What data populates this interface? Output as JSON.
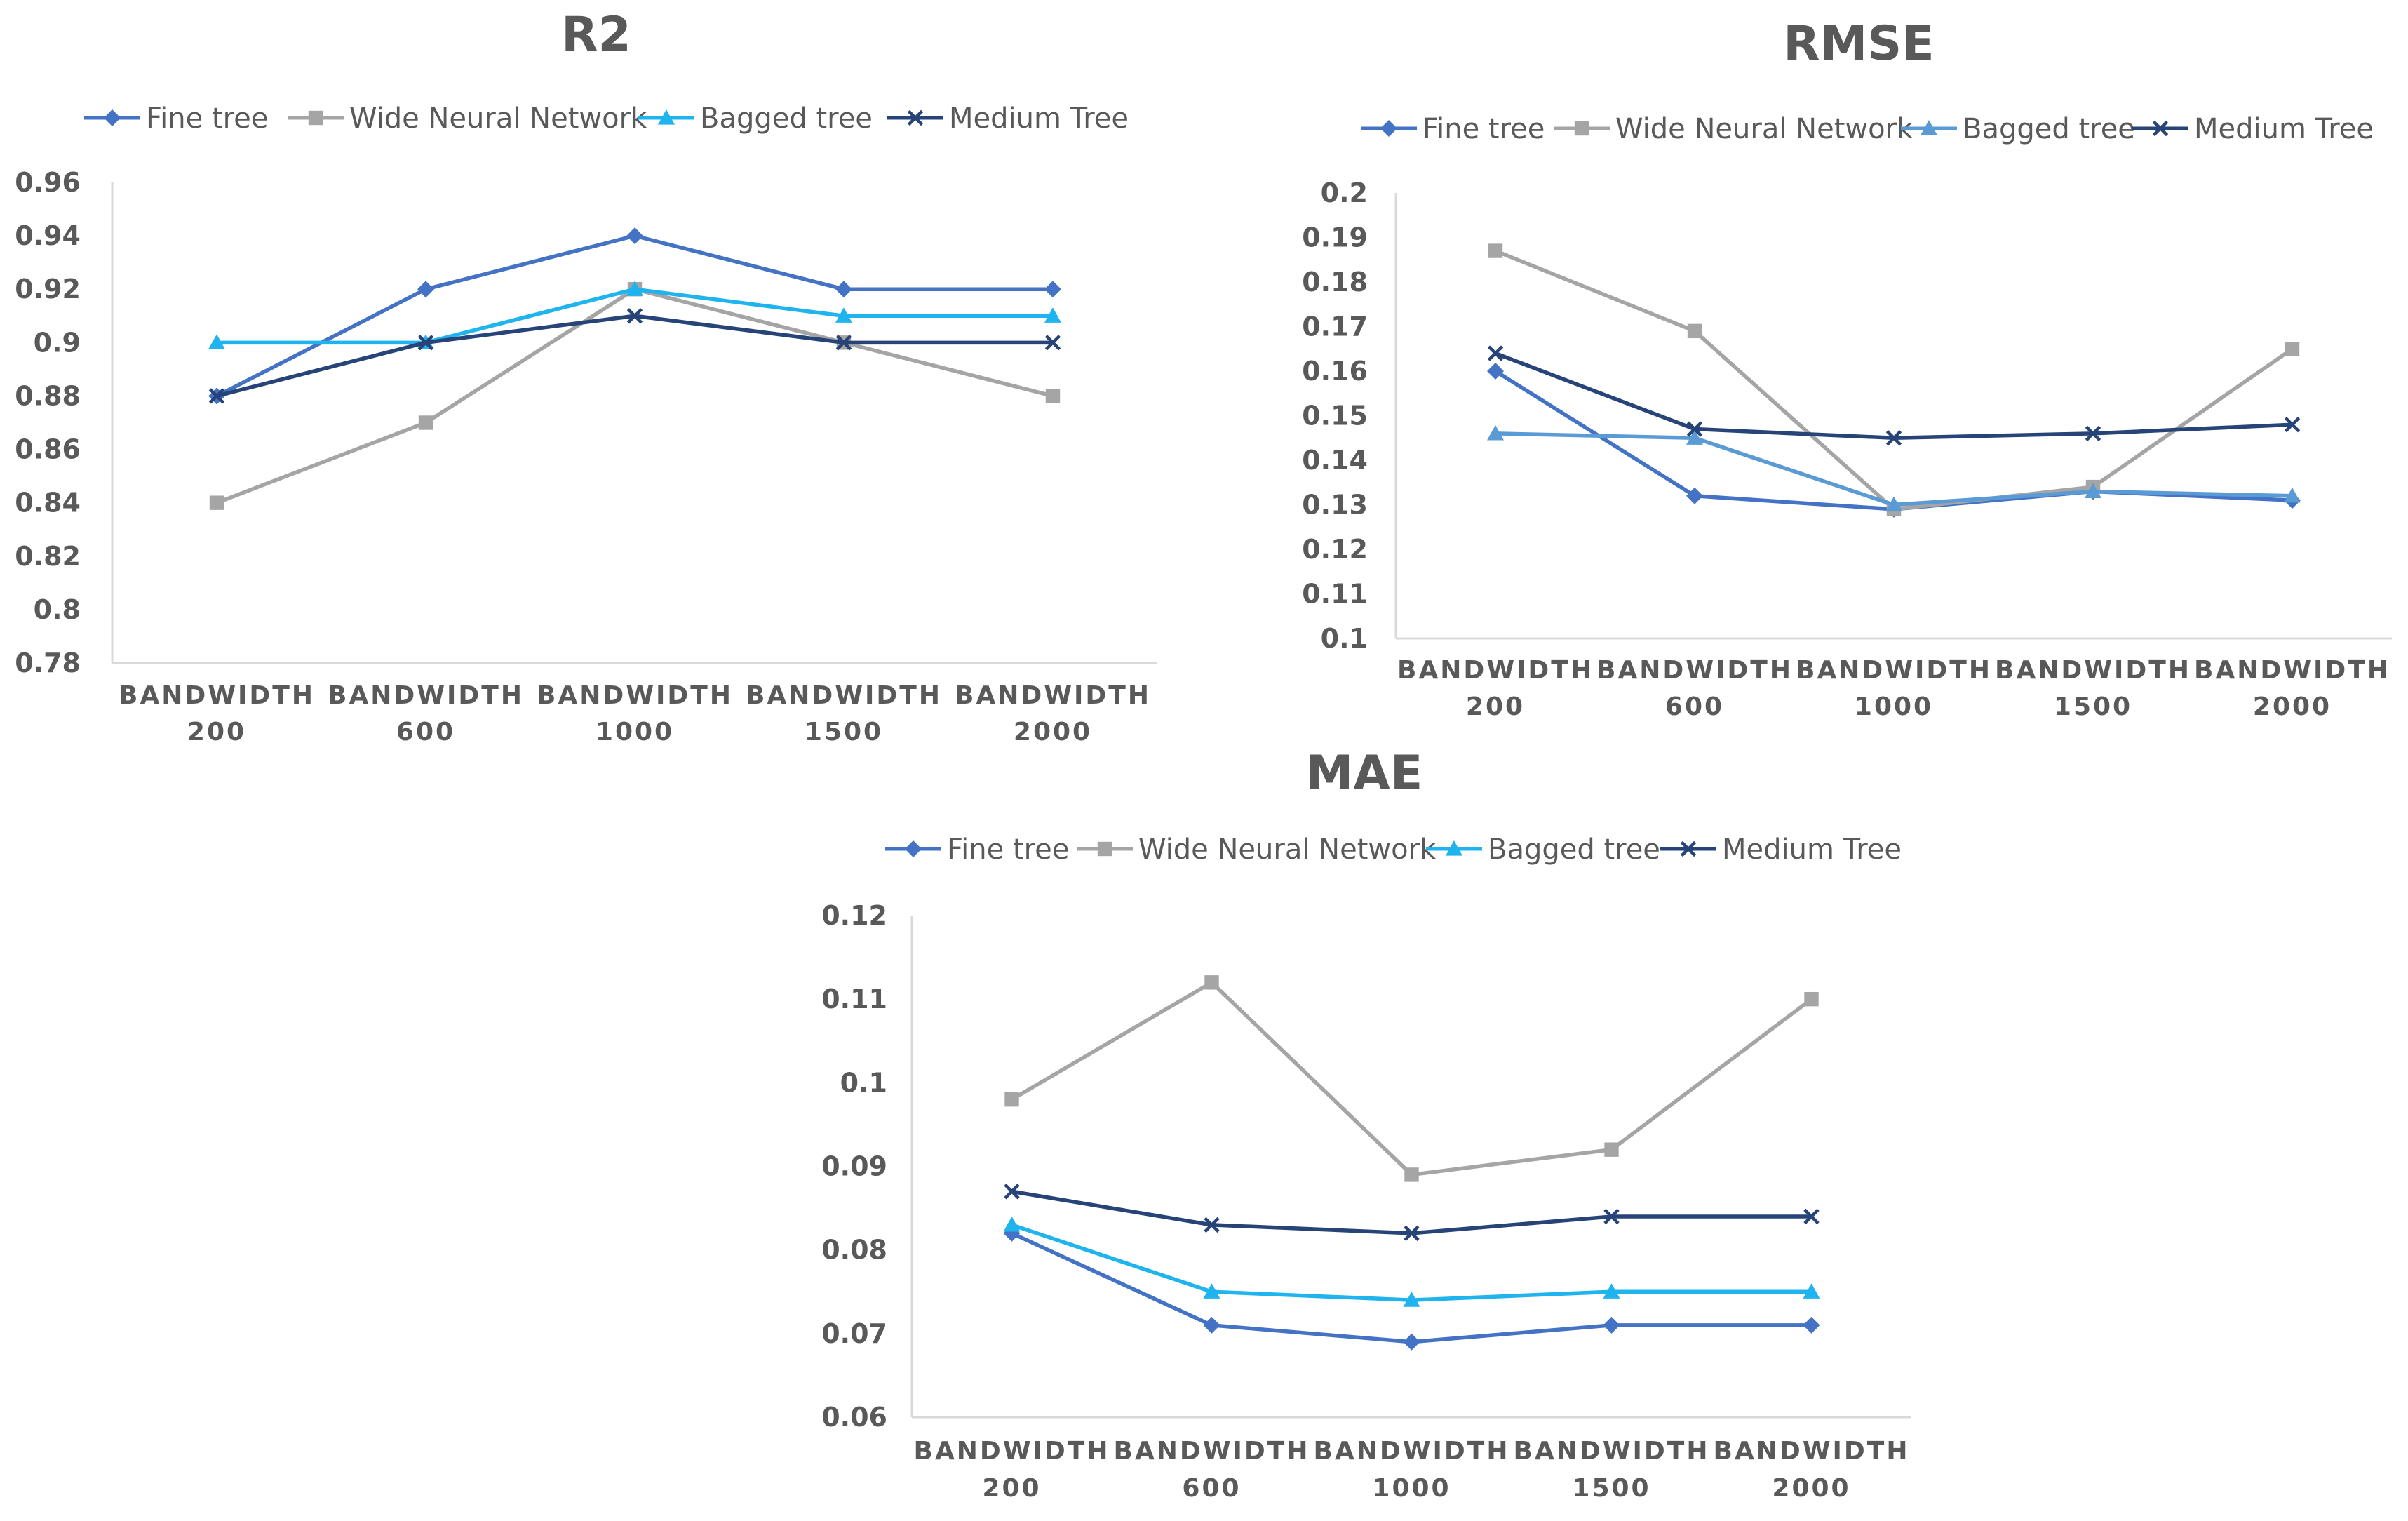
{
  "figure": {
    "colors": {
      "fine_tree": "#4472C4",
      "wide_neural_network": "#A5A5A5",
      "bagged_tree": "#1FB4EE",
      "bagged_tree_alt": "#5B9BD5",
      "medium_tree": "#264478",
      "axis": "#D9D9D9",
      "text": "#595959"
    }
  },
  "chart_data": [
    {
      "id": "r2",
      "type": "line",
      "title": "R2",
      "legend_position": "top",
      "categories": [
        [
          "BANDWIDTH",
          "200"
        ],
        [
          "BANDWIDTH",
          "600"
        ],
        [
          "BANDWIDTH",
          "1000"
        ],
        [
          "BANDWIDTH",
          "1500"
        ],
        [
          "BANDWIDTH",
          "2000"
        ]
      ],
      "ylim": [
        0.78,
        0.96
      ],
      "yticks": [
        "0.78",
        "0.8",
        "0.82",
        "0.84",
        "0.86",
        "0.88",
        "0.9",
        "0.92",
        "0.94",
        "0.96"
      ],
      "grid": false,
      "series": [
        {
          "name": "Fine tree",
          "marker": "diamond",
          "color": "#4472C4",
          "values": [
            0.88,
            0.92,
            0.94,
            0.92,
            0.92
          ]
        },
        {
          "name": "Wide Neural Network",
          "marker": "square",
          "color": "#A5A5A5",
          "values": [
            0.84,
            0.87,
            0.92,
            0.9,
            0.88
          ]
        },
        {
          "name": "Bagged tree",
          "marker": "triangle",
          "color": "#1FB4EE",
          "values": [
            0.9,
            0.9,
            0.92,
            0.91,
            0.91
          ]
        },
        {
          "name": "Medium Tree",
          "marker": "x",
          "color": "#264478",
          "values": [
            0.88,
            0.9,
            0.91,
            0.9,
            0.9
          ]
        }
      ]
    },
    {
      "id": "rmse",
      "type": "line",
      "title": "RMSE",
      "legend_position": "top",
      "categories": [
        [
          "BANDWIDTH",
          "200"
        ],
        [
          "BANDWIDTH",
          "600"
        ],
        [
          "BANDWIDTH",
          "1000"
        ],
        [
          "BANDWIDTH",
          "1500"
        ],
        [
          "BANDWIDTH",
          "2000"
        ]
      ],
      "ylim": [
        0.1,
        0.2
      ],
      "yticks": [
        "0.1",
        "0.11",
        "0.12",
        "0.13",
        "0.14",
        "0.15",
        "0.16",
        "0.17",
        "0.18",
        "0.19",
        "0.2"
      ],
      "grid": false,
      "series": [
        {
          "name": "Fine tree",
          "marker": "diamond",
          "color": "#4472C4",
          "values": [
            0.16,
            0.132,
            0.129,
            0.133,
            0.131
          ]
        },
        {
          "name": "Wide Neural Network",
          "marker": "square",
          "color": "#A5A5A5",
          "values": [
            0.187,
            0.169,
            0.129,
            0.134,
            0.165
          ]
        },
        {
          "name": "Bagged tree",
          "marker": "triangle",
          "color": "#5B9BD5",
          "values": [
            0.146,
            0.145,
            0.13,
            0.133,
            0.132
          ]
        },
        {
          "name": "Medium Tree",
          "marker": "x",
          "color": "#264478",
          "values": [
            0.164,
            0.147,
            0.145,
            0.146,
            0.148
          ]
        }
      ]
    },
    {
      "id": "mae",
      "type": "line",
      "title": "MAE",
      "legend_position": "top",
      "categories": [
        [
          "BANDWIDTH",
          "200"
        ],
        [
          "BANDWIDTH",
          "600"
        ],
        [
          "BANDWIDTH",
          "1000"
        ],
        [
          "BANDWIDTH",
          "1500"
        ],
        [
          "BANDWIDTH",
          "2000"
        ]
      ],
      "ylim": [
        0.06,
        0.12
      ],
      "yticks": [
        "0.06",
        "0.07",
        "0.08",
        "0.09",
        "0.1",
        "0.11",
        "0.12"
      ],
      "grid": false,
      "series": [
        {
          "name": "Fine tree",
          "marker": "diamond",
          "color": "#4472C4",
          "values": [
            0.082,
            0.071,
            0.069,
            0.071,
            0.071
          ]
        },
        {
          "name": "Wide Neural Network",
          "marker": "square",
          "color": "#A5A5A5",
          "values": [
            0.098,
            0.112,
            0.089,
            0.092,
            0.11
          ]
        },
        {
          "name": "Bagged tree",
          "marker": "triangle",
          "color": "#1FB4EE",
          "values": [
            0.083,
            0.075,
            0.074,
            0.075,
            0.075
          ]
        },
        {
          "name": "Medium Tree",
          "marker": "x",
          "color": "#264478",
          "values": [
            0.087,
            0.083,
            0.082,
            0.084,
            0.084
          ]
        }
      ]
    }
  ]
}
